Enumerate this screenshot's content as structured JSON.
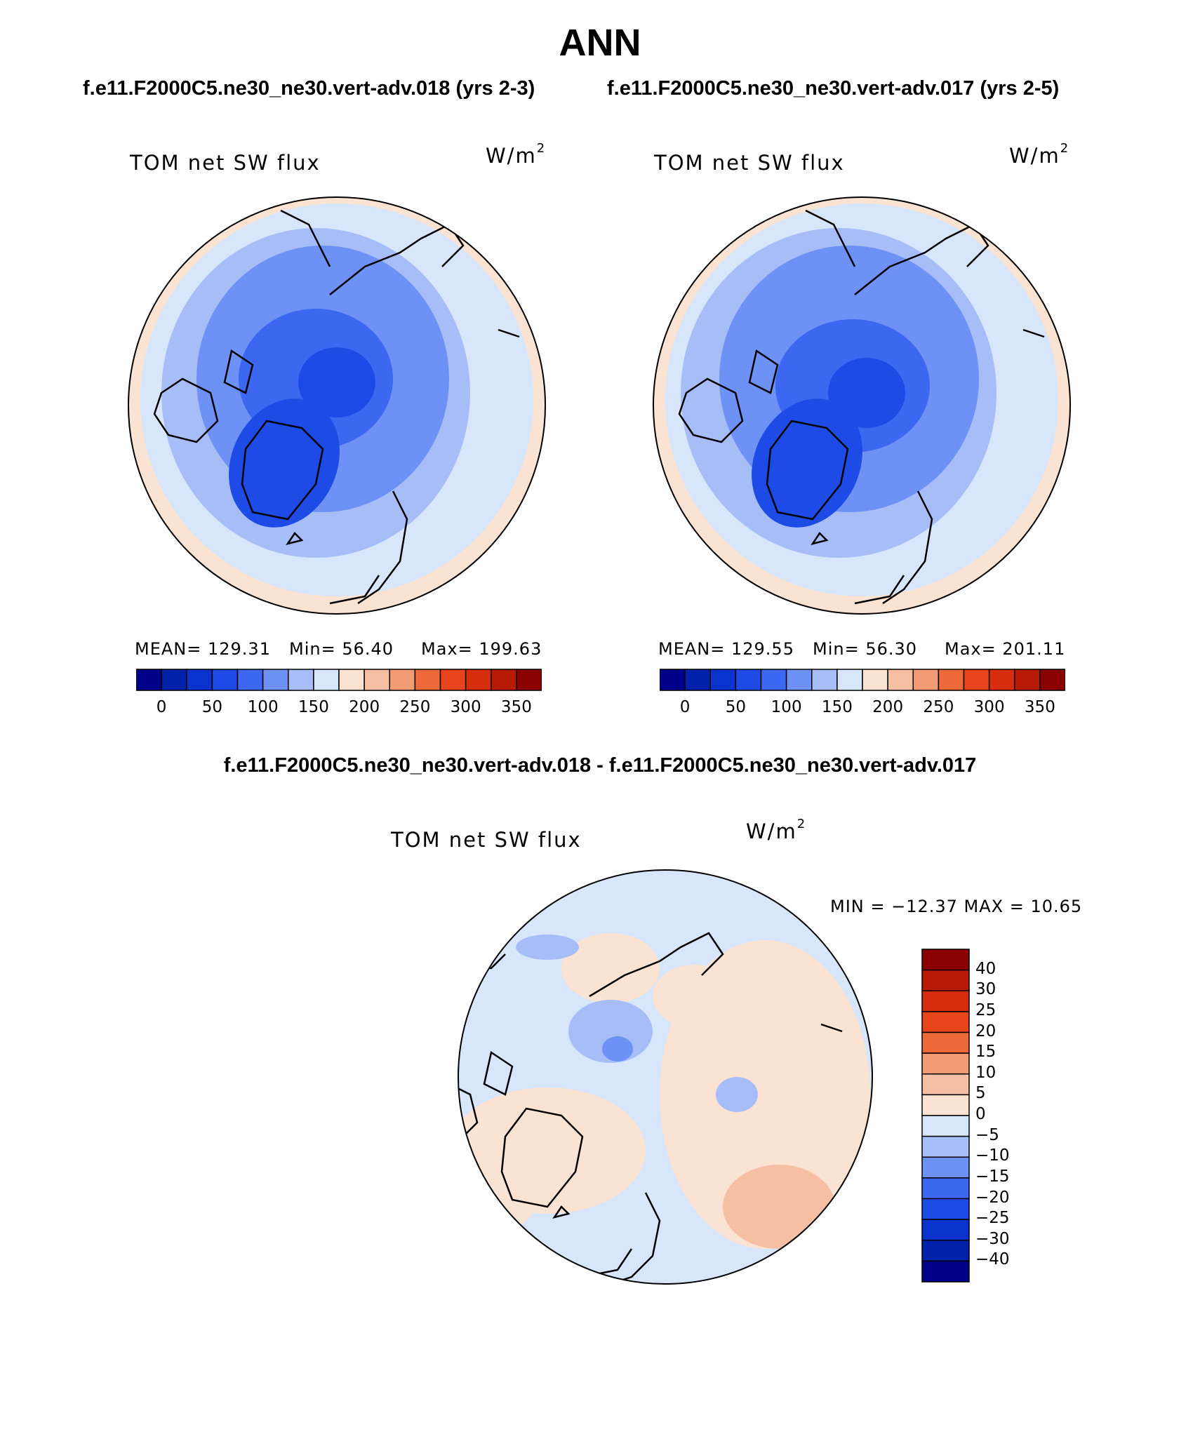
{
  "title": "ANN",
  "case_titles": [
    "f.e11.F2000C5.ne30_ne30.vert-adv.018 (yrs 2-3)",
    "f.e11.F2000C5.ne30_ne30.vert-adv.017 (yrs 2-5)"
  ],
  "diff_title": "f.e11.F2000C5.ne30_ne30.vert-adv.018 - f.e11.F2000C5.ne30_ne30.vert-adv.017",
  "variable": "TOM net SW flux",
  "units": "W/m",
  "units_exp": "2",
  "colors": {
    "abs_scale": [
      "#00008b",
      "#0022aa",
      "#0a32cc",
      "#1e4be6",
      "#3c67f0",
      "#6e91f5",
      "#a7bdf7",
      "#d8e6fb",
      "#fbe3d3",
      "#f6bfa3",
      "#f19a73",
      "#ef6a3a",
      "#e8451c",
      "#d62d0e",
      "#b71a05",
      "#8b0000"
    ],
    "diff_scale": [
      "#00008b",
      "#0022aa",
      "#0a32cc",
      "#1e4be6",
      "#3c67f0",
      "#6e91f5",
      "#a7bdf7",
      "#d8e6fb",
      "#fbe3d3",
      "#f6bfa3",
      "#f19a73",
      "#ef6a3a",
      "#e8451c",
      "#d62d0e",
      "#b71a05",
      "#8b0000"
    ]
  },
  "panels": [
    {
      "label": "TOM net SW flux",
      "mean": "MEAN= 129.31",
      "min": "Min=  56.40",
      "max": "Max= 199.63"
    },
    {
      "label": "TOM net SW flux",
      "mean": "MEAN= 129.55",
      "min": "Min=  56.30",
      "max": "Max= 201.11"
    }
  ],
  "abs_ticks": [
    "0",
    "50",
    "100",
    "150",
    "200",
    "250",
    "300",
    "350"
  ],
  "diff_panel": {
    "label": "TOM net SW flux",
    "minmax": "MIN = −12.37 MAX =  10.65",
    "ticks": [
      "40",
      "30",
      "25",
      "20",
      "15",
      "10",
      "5",
      "0",
      "−5",
      "−10",
      "−15",
      "−20",
      "−25",
      "−30",
      "−40"
    ]
  }
}
